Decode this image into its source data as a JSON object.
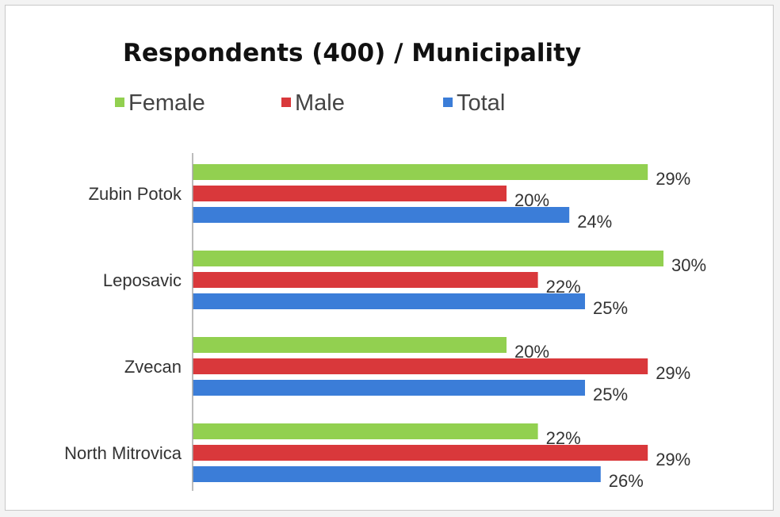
{
  "chart_data": {
    "type": "bar",
    "orientation": "horizontal",
    "title": "Respondents (400) / Municipality",
    "categories": [
      "Zubin Potok",
      "Leposavic",
      "Zvecan",
      "North Mitrovica"
    ],
    "series": [
      {
        "name": "Female",
        "color": "#92d050",
        "values": [
          29,
          30,
          20,
          22
        ]
      },
      {
        "name": "Male",
        "color": "#d9383b",
        "values": [
          20,
          22,
          29,
          29
        ]
      },
      {
        "name": "Total",
        "color": "#3b7dd8",
        "values": [
          24,
          25,
          25,
          26
        ]
      }
    ],
    "value_suffix": "%",
    "xlim": [
      0,
      30
    ],
    "grid": false,
    "legend_position": "top"
  }
}
